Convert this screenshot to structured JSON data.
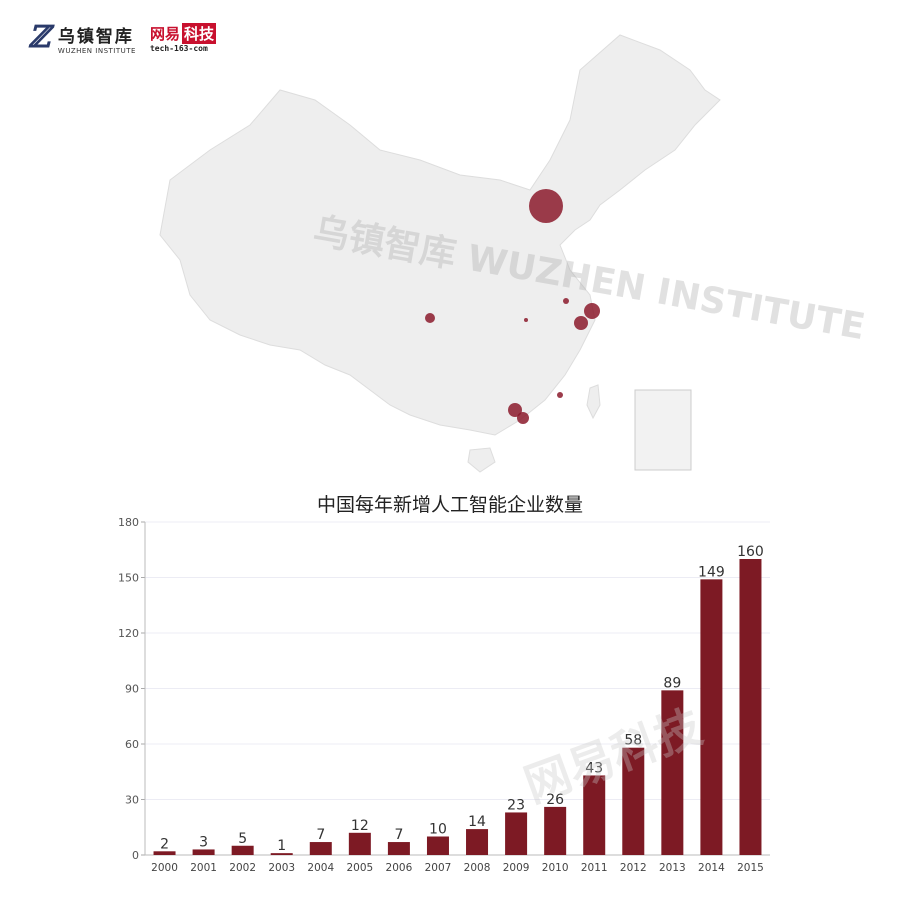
{
  "header": {
    "logo_wuzhen_cn": "乌镇智库",
    "logo_wuzhen_en": "WUZHEN INSTITUTE",
    "logo_netease_cn_1": "网易",
    "logo_netease_cn_2": "科技",
    "logo_netease_url": "tech-163-com"
  },
  "map": {
    "land_color": "#eeeeee",
    "border_color": "#ffffff",
    "bubble_color": "#8b1a2b",
    "watermark": "乌镇智库 WUZHEN INSTITUTE"
  },
  "chart_data": {
    "type": "bar",
    "title": "中国每年新增人工智能企业数量",
    "categories": [
      "2000",
      "2001",
      "2002",
      "2003",
      "2004",
      "2005",
      "2006",
      "2007",
      "2008",
      "2009",
      "2010",
      "2011",
      "2012",
      "2013",
      "2014",
      "2015"
    ],
    "values": [
      2,
      3,
      5,
      1,
      7,
      12,
      7,
      10,
      14,
      23,
      26,
      43,
      58,
      89,
      149,
      160
    ],
    "ylim": [
      0,
      180
    ],
    "yticks": [
      0,
      30,
      60,
      90,
      120,
      150,
      180
    ],
    "grid": true,
    "bar_color": "#7d1a24",
    "xlabel": "",
    "ylabel": "",
    "watermark": "网易科技"
  }
}
